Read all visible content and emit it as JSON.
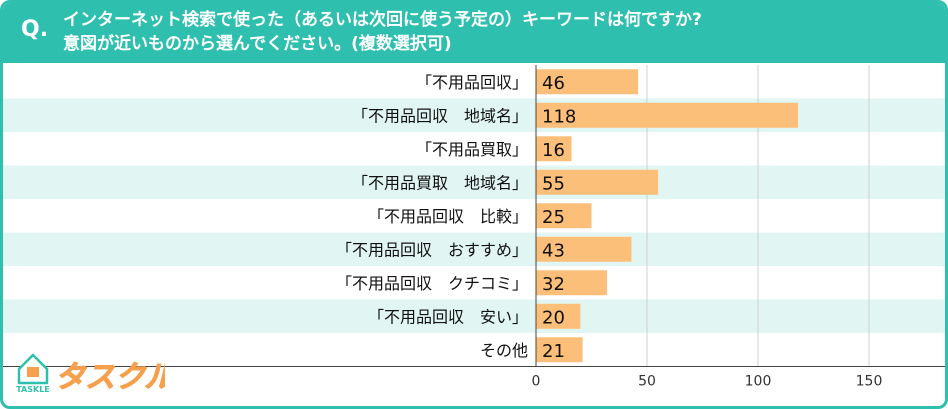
{
  "question": {
    "mark": "Q.",
    "line1": "インターネット検索で使った（あるいは次回に使う予定の）キーワードは何ですか?",
    "line2": "意図が近いものから選んでください。(複数選択可)"
  },
  "logo": {
    "sub": "TASKLE",
    "main": "タスクル"
  },
  "colors": {
    "accent": "#2fbfae",
    "bar": "#fbbf7a",
    "stripe": "#e1f5f2"
  },
  "chart_data": {
    "type": "bar",
    "orientation": "horizontal",
    "categories": [
      "「不用品回収」",
      "「不用品回収　地域名」",
      "「不用品買取」",
      "「不用品買取　地域名」",
      "「不用品回収　比較」",
      "「不用品回収　おすすめ」",
      "「不用品回収　クチコミ」",
      "「不用品回収　安い」",
      "その他"
    ],
    "values": [
      46,
      118,
      16,
      55,
      25,
      43,
      32,
      20,
      21
    ],
    "xlim": [
      0,
      180
    ],
    "xticks": [
      0,
      50,
      100,
      150
    ],
    "grid": true
  }
}
